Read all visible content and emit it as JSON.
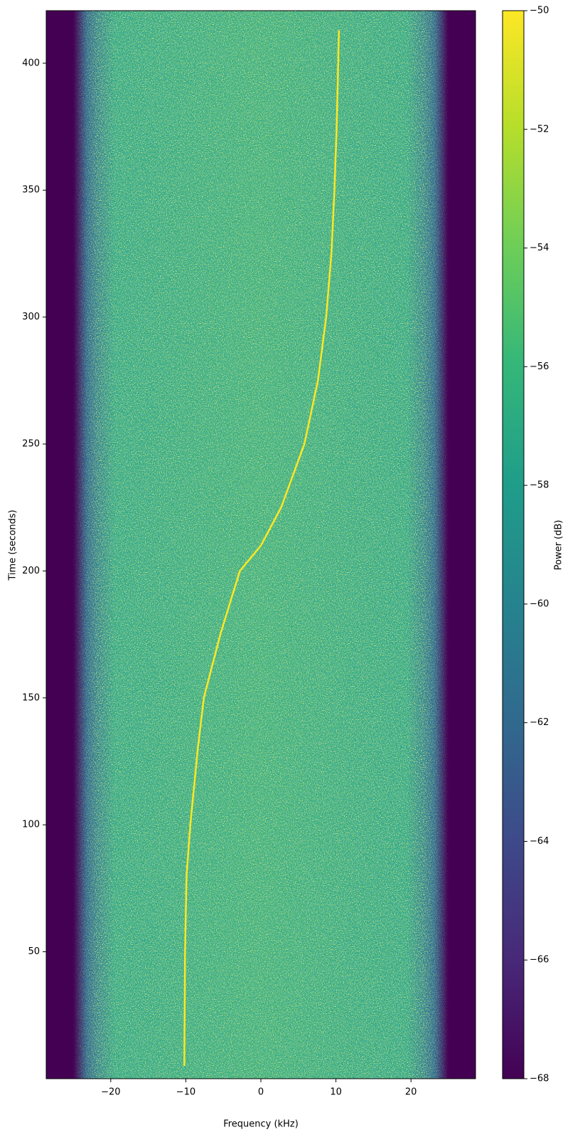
{
  "chart_data": {
    "type": "spectrogram",
    "xlabel": "Frequency (kHz)",
    "ylabel": "Time (seconds)",
    "xlim": [
      -28.6,
      28.6
    ],
    "xticks": [
      {
        "value": -20,
        "label": "−20"
      },
      {
        "value": -10,
        "label": "−10"
      },
      0,
      10,
      20
    ],
    "ylim": [
      0,
      420.7
    ],
    "yticks": [
      50,
      100,
      150,
      200,
      250,
      300,
      350,
      400
    ],
    "series": [
      {
        "color": "#fde725",
        "x": [
          -10.2,
          -10.1,
          -9.9,
          -9.4,
          -8.4,
          -7.6,
          -5.4,
          -2.8,
          0,
          2.7,
          5.8,
          7.6,
          8.7,
          9.4,
          9.8,
          10.1,
          10.3,
          10.4
        ],
        "values": [
          5,
          50,
          80,
          100,
          130,
          150,
          175,
          200,
          210,
          225,
          250,
          275,
          300,
          325,
          350,
          375,
          400,
          413
        ]
      }
    ],
    "colorbar": {
      "label": "Power (dB)",
      "lim": [
        -68,
        -50
      ],
      "ticks": [
        {
          "value": -68,
          "label": "−68"
        },
        {
          "value": -66,
          "label": "−66"
        },
        {
          "value": -64,
          "label": "−64"
        },
        {
          "value": -62,
          "label": "−62"
        },
        {
          "value": -60,
          "label": "−60"
        },
        {
          "value": -58,
          "label": "−58"
        },
        {
          "value": -56,
          "label": "−56"
        },
        {
          "value": -54,
          "label": "−54"
        },
        {
          "value": -52,
          "label": "−52"
        },
        {
          "value": -50,
          "label": "−50"
        }
      ]
    }
  }
}
